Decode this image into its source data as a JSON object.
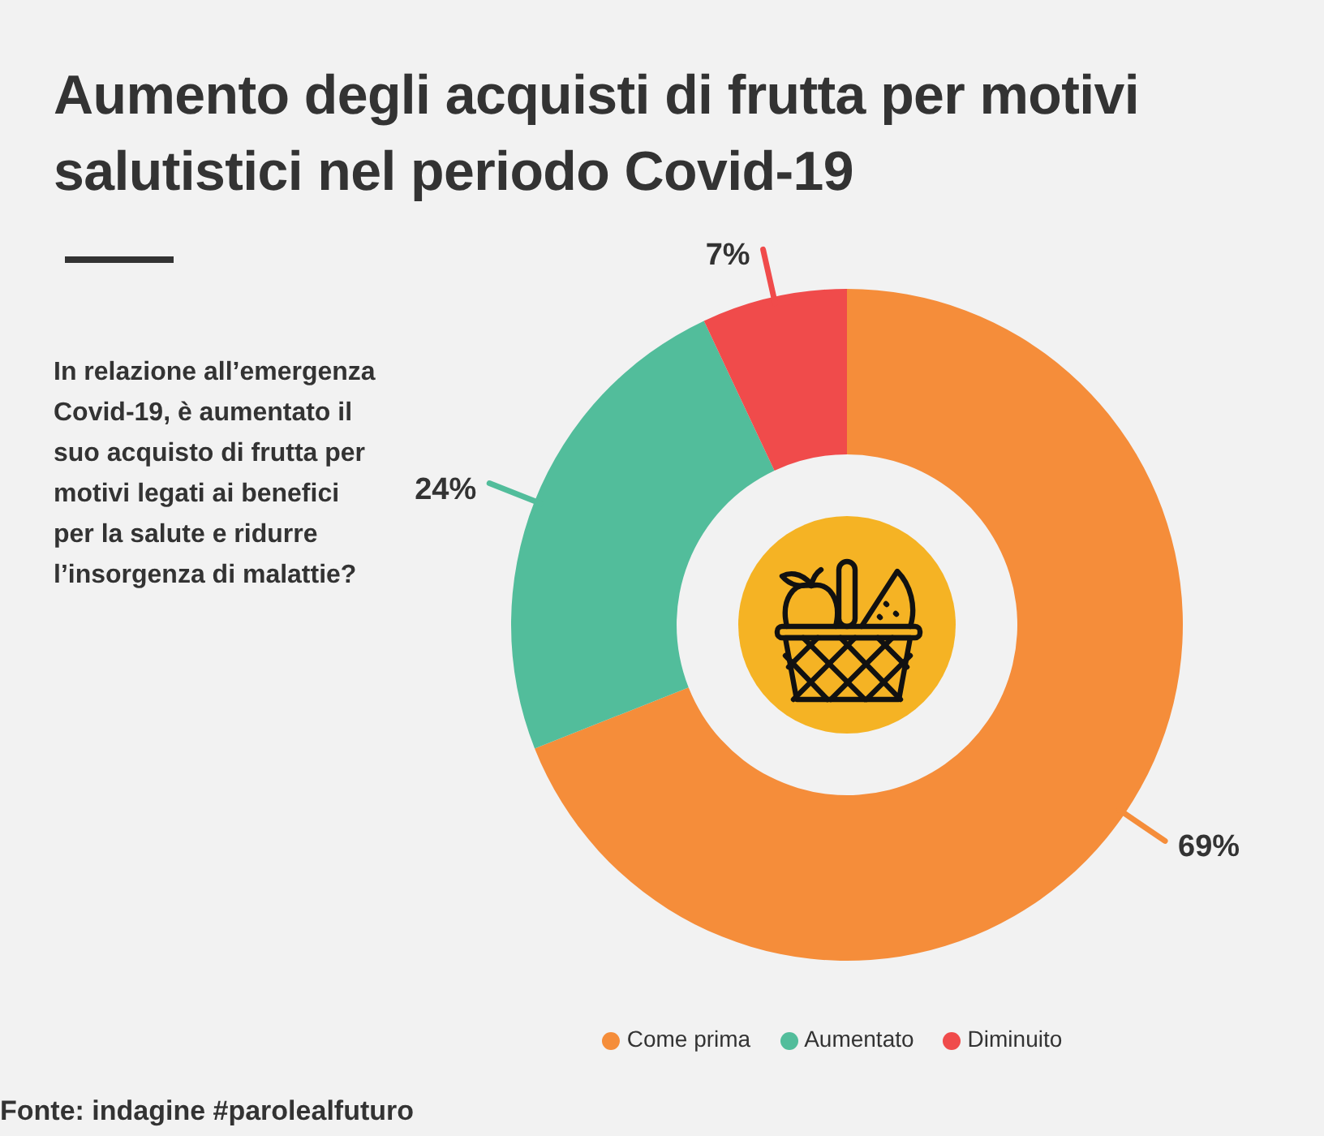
{
  "chart_data": {
    "type": "donut",
    "title": "Aumento degli acquisti di frutta per motivi salutistici nel periodo Covid-19",
    "subtitle": "In relazione all’emergenza Covid-19, è aumentato il suo acquisto di frutta per motivi legati ai benefici per la salute e ridurre l’insorgenza di malattie?",
    "categories": [
      "Come prima",
      "Aumentato",
      "Diminuito"
    ],
    "values": [
      69,
      24,
      7
    ],
    "colors": [
      "#f58d3a",
      "#52bd9b",
      "#f04b4b"
    ],
    "value_labels": [
      "69%",
      "24%",
      "7%"
    ],
    "legend": "bottom",
    "annotations": [
      "Fonte: indagine #parolealfuturo"
    ]
  }
}
